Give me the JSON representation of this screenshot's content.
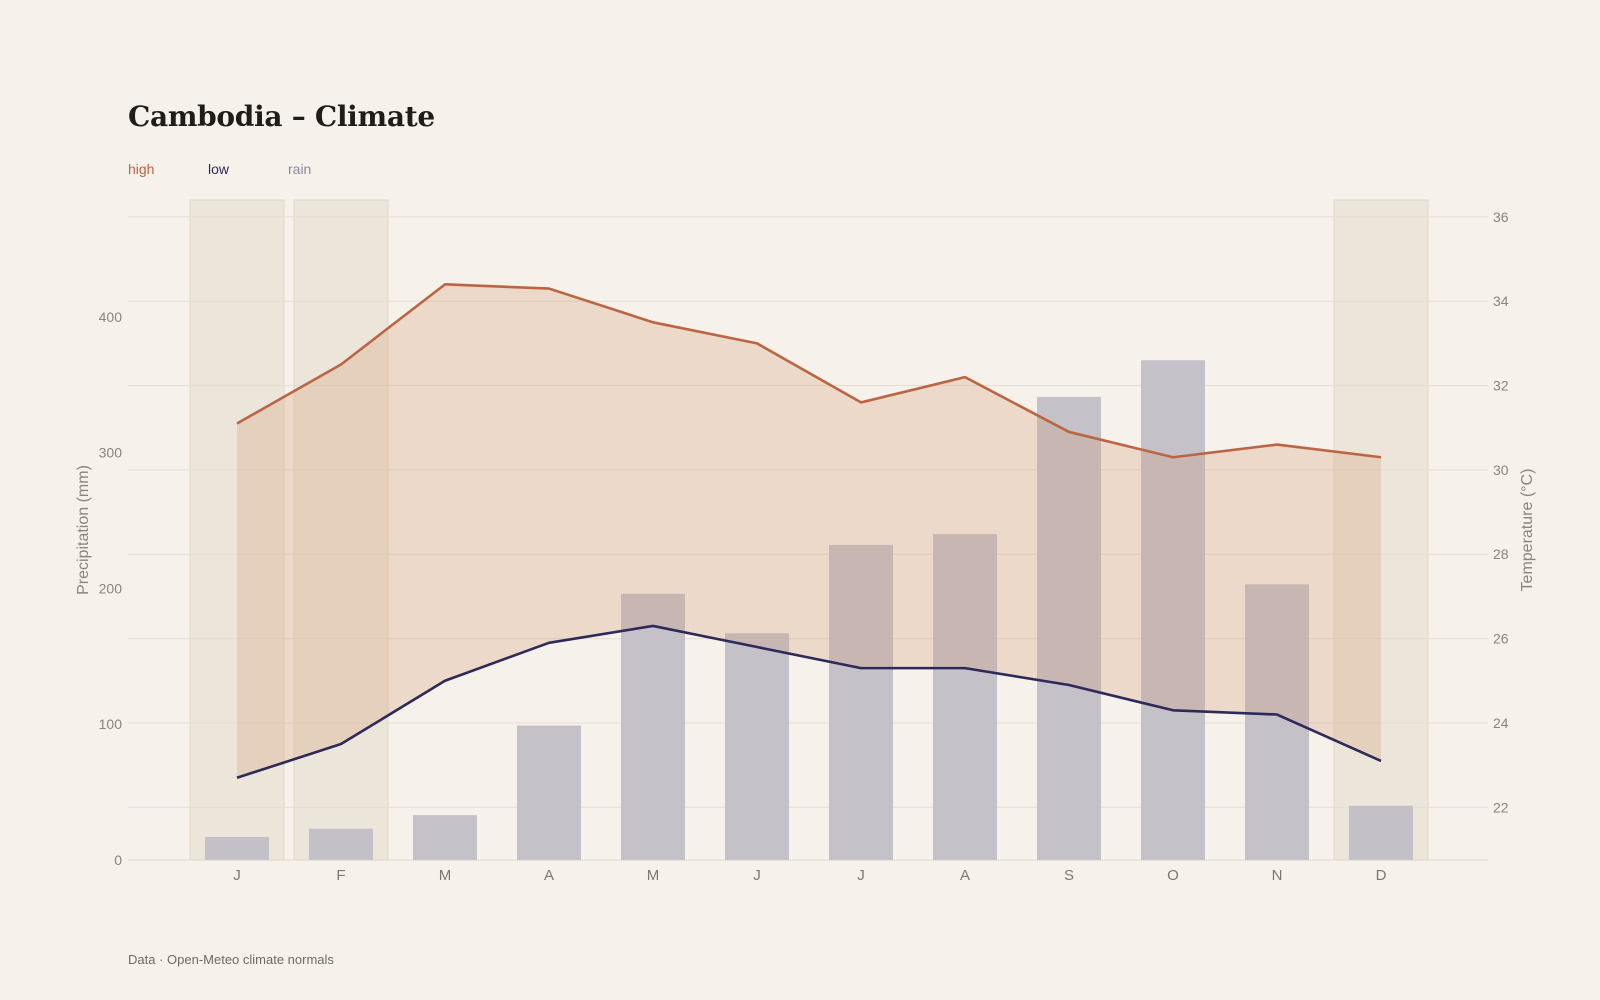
{
  "title": "Cambodia – Climate",
  "legend": {
    "high": "high",
    "low": "low",
    "rain": "rain"
  },
  "source": "Data · Open-Meteo climate normals",
  "colors": {
    "high": "#bb6543",
    "low": "#2d2a5a",
    "rain": "#c1bec7",
    "band": "#e9d5c9",
    "dry_season": "#ece5da",
    "background": "#f6f1ea"
  },
  "chart_data": {
    "type": "bar+line",
    "categories": [
      "J",
      "F",
      "M",
      "A",
      "M",
      "J",
      "J",
      "A",
      "S",
      "O",
      "N",
      "D"
    ],
    "dry_season_months": [
      0,
      1,
      11
    ],
    "series": [
      {
        "name": "high",
        "axis": "right",
        "kind": "line",
        "values": [
          31.1,
          32.5,
          34.4,
          34.3,
          33.5,
          33.0,
          31.6,
          32.2,
          30.9,
          30.3,
          30.6,
          30.3
        ]
      },
      {
        "name": "low",
        "axis": "right",
        "kind": "line",
        "values": [
          22.7,
          23.5,
          25.0,
          25.9,
          26.3,
          25.8,
          25.3,
          25.3,
          24.9,
          24.3,
          24.2,
          23.1
        ]
      },
      {
        "name": "rain",
        "axis": "left",
        "kind": "bar",
        "values": [
          17,
          23,
          33,
          99,
          196,
          167,
          232,
          240,
          341,
          368,
          203,
          40
        ]
      }
    ],
    "y_left": {
      "label": "Precipitation (mm)",
      "ticks": [
        0,
        100,
        200,
        300,
        400
      ],
      "range": [
        0,
        486
      ]
    },
    "y_right": {
      "label": "Temperature (°C)",
      "ticks": [
        22,
        24,
        26,
        28,
        30,
        32,
        34,
        36
      ],
      "range": [
        20.75,
        36.4
      ]
    },
    "grid": true
  }
}
